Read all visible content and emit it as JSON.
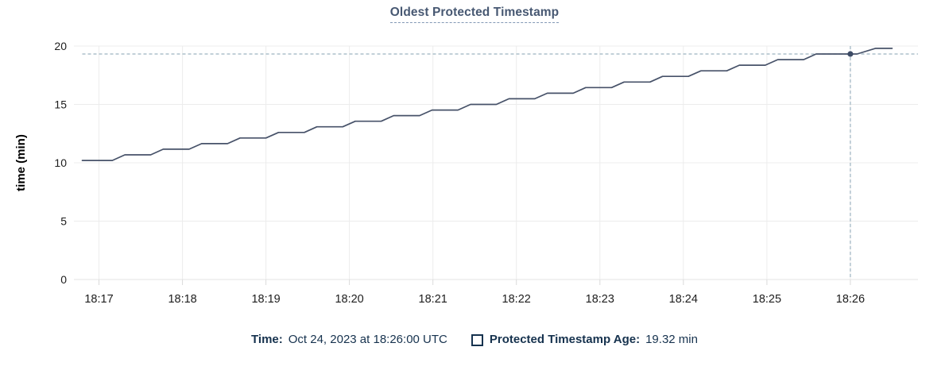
{
  "panel": {
    "title": "Oldest Protected Timestamp"
  },
  "colors": {
    "background": "#ffffff",
    "title_text": "#475872",
    "title_underline": "#8298b5",
    "grid": "#ececec",
    "axis_line": "#e3e3e3",
    "tick_stub": "#dadada",
    "tick_label": "#1d1d1d",
    "axis_title": "#000000",
    "series_line": "#475269",
    "marker": "#3d4b66",
    "crosshair": "#9cb3c0",
    "legend_text": "#16324e"
  },
  "chart_data": {
    "type": "line",
    "title": "Oldest Protected Timestamp",
    "xlabel": "",
    "ylabel": "time (min)",
    "ylim": [
      0,
      20
    ],
    "y_ticks": [
      0,
      5,
      10,
      15,
      20
    ],
    "x_tick_labels": [
      "18:17",
      "18:18",
      "18:19",
      "18:20",
      "18:21",
      "18:22",
      "18:23",
      "18:24",
      "18:25",
      "18:26"
    ],
    "x_unit": "minutes after 18:17, one tick per minute",
    "x_range": [
      -0.3,
      9.81
    ],
    "grid": true,
    "legend_position": "bottom-tooltip",
    "series": [
      {
        "name": "Protected Timestamp Age",
        "unit": "min",
        "points": [
          [
            -0.2,
            10.2
          ],
          [
            0.16,
            10.2
          ],
          [
            0.31,
            10.68
          ],
          [
            0.62,
            10.68
          ],
          [
            0.77,
            11.16
          ],
          [
            1.08,
            11.16
          ],
          [
            1.23,
            11.64
          ],
          [
            1.54,
            11.64
          ],
          [
            1.69,
            12.12
          ],
          [
            2.0,
            12.12
          ],
          [
            2.15,
            12.6
          ],
          [
            2.46,
            12.6
          ],
          [
            2.61,
            13.08
          ],
          [
            2.92,
            13.08
          ],
          [
            3.07,
            13.56
          ],
          [
            3.38,
            13.56
          ],
          [
            3.53,
            14.04
          ],
          [
            3.84,
            14.04
          ],
          [
            3.99,
            14.52
          ],
          [
            4.3,
            14.52
          ],
          [
            4.45,
            15.0
          ],
          [
            4.76,
            15.0
          ],
          [
            4.91,
            15.48
          ],
          [
            5.22,
            15.48
          ],
          [
            5.37,
            15.96
          ],
          [
            5.68,
            15.96
          ],
          [
            5.83,
            16.44
          ],
          [
            6.14,
            16.44
          ],
          [
            6.29,
            16.92
          ],
          [
            6.6,
            16.92
          ],
          [
            6.75,
            17.4
          ],
          [
            7.06,
            17.4
          ],
          [
            7.21,
            17.88
          ],
          [
            7.52,
            17.88
          ],
          [
            7.67,
            18.36
          ],
          [
            7.98,
            18.36
          ],
          [
            8.13,
            18.84
          ],
          [
            8.44,
            18.84
          ],
          [
            8.59,
            19.32
          ],
          [
            9.08,
            19.32
          ],
          [
            9.3,
            19.8
          ],
          [
            9.5,
            19.8
          ]
        ]
      }
    ],
    "highlight": {
      "x": 9.0,
      "x_label": "18:26",
      "y": 19.32,
      "crosshair": true
    }
  },
  "tooltip": {
    "time_label": "Time:",
    "time_value": "Oct 24, 2023 at 18:26:00 UTC",
    "age_label": "Protected Timestamp Age:",
    "age_value": "19.32 min"
  }
}
